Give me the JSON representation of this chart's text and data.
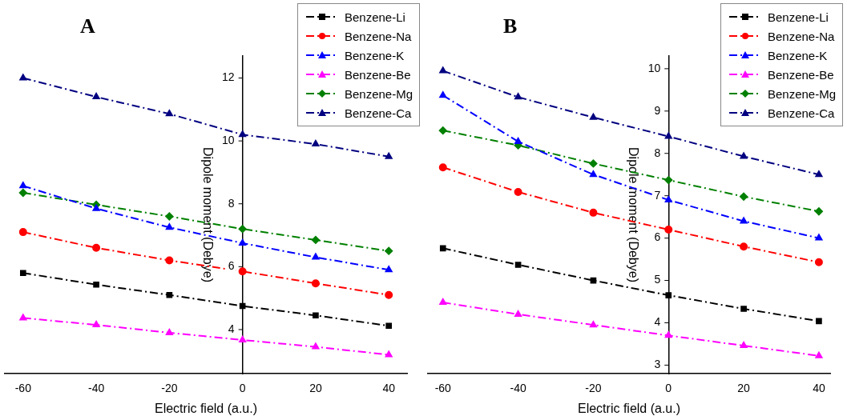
{
  "chart_data": [
    {
      "type": "line",
      "title": "A",
      "xlabel": "Electric field (a.u.)",
      "ylabel": "Dipole moment (Debye)",
      "x": [
        -60,
        -40,
        -20,
        0,
        20,
        40
      ],
      "xlim": [
        -65,
        45
      ],
      "xticks": [
        -60,
        -40,
        -20,
        0,
        20,
        40
      ],
      "ylim": [
        2.6,
        12.7
      ],
      "yticks": [
        4,
        6,
        8,
        10,
        12
      ],
      "grid": false,
      "legend": "top right",
      "line_style": "dashed",
      "series": [
        {
          "name": "Benzene-Li",
          "color": "#000000",
          "marker": "square",
          "values": [
            5.8,
            5.43,
            5.1,
            4.75,
            4.45,
            4.12
          ]
        },
        {
          "name": "Benzene-Na",
          "color": "#ff0000",
          "marker": "circle",
          "values": [
            7.1,
            6.6,
            6.2,
            5.85,
            5.47,
            5.1
          ]
        },
        {
          "name": "Benzene-K",
          "color": "#0000ff",
          "marker": "triangle",
          "values": [
            8.57,
            7.85,
            7.25,
            6.75,
            6.3,
            5.9
          ]
        },
        {
          "name": "Benzene-Be",
          "color": "#ff00ff",
          "marker": "triangle",
          "values": [
            4.37,
            4.15,
            3.9,
            3.67,
            3.45,
            3.2
          ]
        },
        {
          "name": "Benzene-Mg",
          "color": "#008000",
          "marker": "diamond",
          "values": [
            8.35,
            7.97,
            7.6,
            7.2,
            6.85,
            6.5
          ]
        },
        {
          "name": "Benzene-Ca",
          "color": "#000080",
          "marker": "triangle",
          "values": [
            12.0,
            11.4,
            10.86,
            10.2,
            9.9,
            9.5
          ]
        }
      ]
    },
    {
      "type": "line",
      "title": "B",
      "xlabel": "Electric field (a.u.)",
      "ylabel": "Dipole moment (Debye)",
      "x": [
        -60,
        -40,
        -20,
        0,
        20,
        40
      ],
      "xlim": [
        -64,
        43
      ],
      "xticks": [
        -60,
        -40,
        -20,
        0,
        20,
        40
      ],
      "ylim": [
        2.8,
        10.3
      ],
      "yticks": [
        3,
        4,
        5,
        6,
        7,
        8,
        9,
        10
      ],
      "grid": false,
      "legend": "top right",
      "line_style": "dashed",
      "series": [
        {
          "name": "Benzene-Li",
          "color": "#000000",
          "marker": "square",
          "values": [
            5.76,
            5.37,
            5.0,
            4.65,
            4.33,
            4.04
          ]
        },
        {
          "name": "Benzene-Na",
          "color": "#ff0000",
          "marker": "circle",
          "values": [
            7.67,
            7.09,
            6.6,
            6.2,
            5.8,
            5.43
          ]
        },
        {
          "name": "Benzene-K",
          "color": "#0000ff",
          "marker": "triangle",
          "values": [
            9.37,
            8.28,
            7.5,
            6.9,
            6.4,
            6.0
          ]
        },
        {
          "name": "Benzene-Be",
          "color": "#ff00ff",
          "marker": "triangle",
          "values": [
            4.48,
            4.2,
            3.95,
            3.7,
            3.46,
            3.22
          ]
        },
        {
          "name": "Benzene-Mg",
          "color": "#008000",
          "marker": "diamond",
          "values": [
            8.54,
            8.19,
            7.76,
            7.37,
            6.98,
            6.63
          ]
        },
        {
          "name": "Benzene-Ca",
          "color": "#000080",
          "marker": "triangle",
          "values": [
            9.95,
            9.33,
            8.85,
            8.4,
            7.93,
            7.5
          ]
        }
      ]
    }
  ]
}
